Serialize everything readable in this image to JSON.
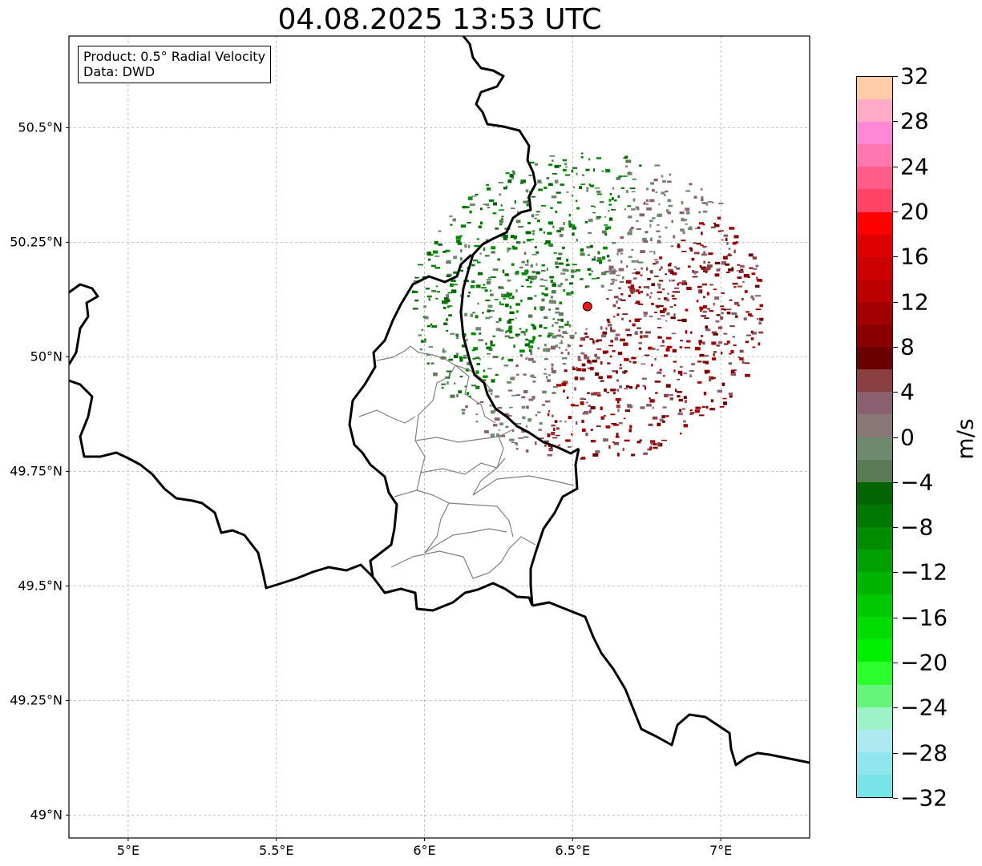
{
  "title": "04.08.2025 13:53 UTC",
  "info": {
    "product": "Product: 0.5° Radial Velocity",
    "data": "Data: DWD"
  },
  "map": {
    "lon_range": [
      4.8,
      7.3
    ],
    "lat_range": [
      48.95,
      50.7
    ],
    "lon_ticks": [
      {
        "value": 5.0,
        "label": "5°E"
      },
      {
        "value": 5.5,
        "label": "5.5°E"
      },
      {
        "value": 6.0,
        "label": "6°E"
      },
      {
        "value": 6.5,
        "label": "6.5°E"
      },
      {
        "value": 7.0,
        "label": "7°E"
      }
    ],
    "lat_ticks": [
      {
        "value": 50.5,
        "label": "50.5°N"
      },
      {
        "value": 50.25,
        "label": "50.25°N"
      },
      {
        "value": 50.0,
        "label": "50°N"
      },
      {
        "value": 49.75,
        "label": "49.75°N"
      },
      {
        "value": 49.5,
        "label": "49.5°N"
      },
      {
        "value": 49.25,
        "label": "49.25°N"
      },
      {
        "value": 49.0,
        "label": "49°N"
      }
    ],
    "grid": true,
    "radar_site": {
      "lon": 6.55,
      "lat": 50.11,
      "color": "#e81b1b"
    },
    "colors": {
      "border": "#000000",
      "district": "#808080",
      "grid": "#b0b0b0"
    }
  },
  "colorbar": {
    "unit": "m/s",
    "min": -32,
    "max": 32,
    "colors_top_to_bottom": [
      "#ffccaa",
      "#ffaac6",
      "#ff88d6",
      "#ff77b0",
      "#ff5c8a",
      "#ff4466",
      "#ff0000",
      "#de0000",
      "#cc0000",
      "#bb0000",
      "#a00000",
      "#8a0000",
      "#6a0000",
      "#8a4040",
      "#8a6070",
      "#8a7878",
      "#6e8a6e",
      "#5a7a55",
      "#006400",
      "#007800",
      "#008c00",
      "#00a000",
      "#00b400",
      "#00c800",
      "#00dc00",
      "#00f000",
      "#2cff2c",
      "#66f57a",
      "#9df2c8",
      "#aee8f0",
      "#8fe6ec",
      "#77e4e8"
    ],
    "ticks": [
      32,
      28,
      24,
      20,
      16,
      12,
      8,
      4,
      0,
      -4,
      -8,
      -12,
      -16,
      -20,
      -24,
      -28,
      -32
    ],
    "tick_labels": [
      "32",
      "28",
      "24",
      "20",
      "16",
      "12",
      "8",
      "4",
      "0",
      "−4",
      "−8",
      "−12",
      "−16",
      "−20",
      "−24",
      "−28",
      "−32"
    ]
  },
  "velocity_field": {
    "approaching_color": "#007800",
    "receding_color": "#8a0000"
  }
}
